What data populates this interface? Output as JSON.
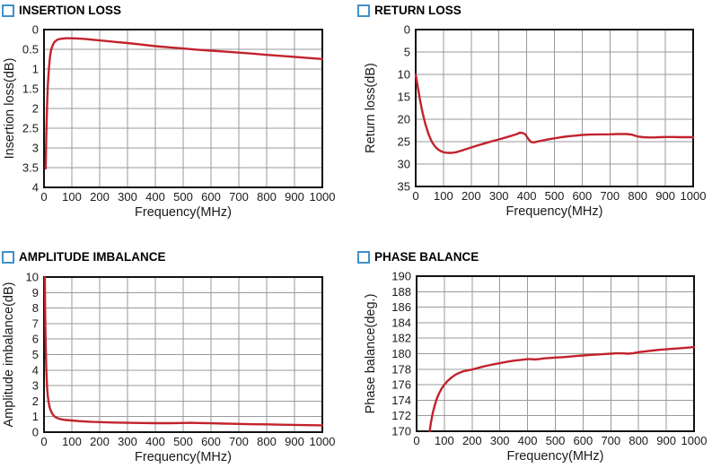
{
  "page": {
    "background": "#ffffff",
    "title_square_color": "#4191c9",
    "curve_color": "#c2222c",
    "grid_color": "#9a9a9a",
    "axis_color": "#111111",
    "text_color": "#1a1a1a"
  },
  "chart_data": [
    {
      "id": "insertion-loss",
      "type": "line",
      "title": "INSERTION LOSS",
      "xlabel": "Frequency(MHz)",
      "ylabel": "Insertion loss(dB)",
      "xlim": [
        0,
        1000
      ],
      "ylim": [
        0,
        4
      ],
      "y_inverted": true,
      "grid": true,
      "xticks": [
        0,
        100,
        200,
        300,
        400,
        500,
        600,
        700,
        800,
        900,
        1000
      ],
      "yticks": [
        0,
        0.5,
        1,
        1.5,
        2,
        2.5,
        3,
        3.5,
        4
      ],
      "series": [
        {
          "name": "insertion loss",
          "points": [
            [
              6,
              3.52
            ],
            [
              7,
              3.1
            ],
            [
              8,
              2.75
            ],
            [
              9,
              2.45
            ],
            [
              10,
              2.2
            ],
            [
              12,
              1.75
            ],
            [
              14,
              1.4
            ],
            [
              16,
              1.15
            ],
            [
              18,
              0.95
            ],
            [
              20,
              0.8
            ],
            [
              23,
              0.62
            ],
            [
              26,
              0.5
            ],
            [
              30,
              0.42
            ],
            [
              35,
              0.34
            ],
            [
              40,
              0.3
            ],
            [
              45,
              0.27
            ],
            [
              50,
              0.25
            ],
            [
              60,
              0.235
            ],
            [
              70,
              0.225
            ],
            [
              80,
              0.22
            ],
            [
              100,
              0.22
            ],
            [
              120,
              0.225
            ],
            [
              150,
              0.24
            ],
            [
              200,
              0.275
            ],
            [
              250,
              0.31
            ],
            [
              300,
              0.34
            ],
            [
              350,
              0.38
            ],
            [
              400,
              0.42
            ],
            [
              450,
              0.45
            ],
            [
              500,
              0.48
            ],
            [
              550,
              0.51
            ],
            [
              600,
              0.535
            ],
            [
              650,
              0.56
            ],
            [
              700,
              0.585
            ],
            [
              750,
              0.61
            ],
            [
              800,
              0.64
            ],
            [
              850,
              0.665
            ],
            [
              900,
              0.69
            ],
            [
              950,
              0.72
            ],
            [
              1000,
              0.745
            ]
          ]
        }
      ]
    },
    {
      "id": "return-loss",
      "type": "line",
      "title": "RETURN LOSS",
      "xlabel": "Frequency(MHz)",
      "ylabel": "Return loss(dB)",
      "xlim": [
        0,
        1000
      ],
      "ylim": [
        0,
        35
      ],
      "y_inverted": true,
      "grid": true,
      "xticks": [
        0,
        100,
        200,
        300,
        400,
        500,
        600,
        700,
        800,
        900,
        1000
      ],
      "yticks": [
        0,
        5,
        10,
        15,
        20,
        25,
        30,
        35
      ],
      "series": [
        {
          "name": "return loss",
          "points": [
            [
              0,
              10
            ],
            [
              5,
              11.8
            ],
            [
              10,
              13.7
            ],
            [
              15,
              15.5
            ],
            [
              20,
              17.1
            ],
            [
              25,
              18.6
            ],
            [
              30,
              19.9
            ],
            [
              35,
              21.1
            ],
            [
              40,
              22.1
            ],
            [
              45,
              23.1
            ],
            [
              50,
              23.9
            ],
            [
              55,
              24.6
            ],
            [
              60,
              25.2
            ],
            [
              70,
              26.1
            ],
            [
              80,
              26.7
            ],
            [
              90,
              27.1
            ],
            [
              100,
              27.35
            ],
            [
              115,
              27.5
            ],
            [
              130,
              27.5
            ],
            [
              145,
              27.35
            ],
            [
              160,
              27.1
            ],
            [
              180,
              26.7
            ],
            [
              200,
              26.3
            ],
            [
              225,
              25.8
            ],
            [
              250,
              25.35
            ],
            [
              275,
              24.9
            ],
            [
              300,
              24.5
            ],
            [
              325,
              24.05
            ],
            [
              350,
              23.6
            ],
            [
              365,
              23.3
            ],
            [
              375,
              23.0
            ],
            [
              385,
              23.05
            ],
            [
              395,
              23.35
            ],
            [
              405,
              24.3
            ],
            [
              415,
              25.05
            ],
            [
              425,
              25.15
            ],
            [
              440,
              24.95
            ],
            [
              460,
              24.7
            ],
            [
              480,
              24.45
            ],
            [
              500,
              24.25
            ],
            [
              525,
              24.0
            ],
            [
              550,
              23.8
            ],
            [
              575,
              23.65
            ],
            [
              600,
              23.5
            ],
            [
              630,
              23.42
            ],
            [
              660,
              23.38
            ],
            [
              700,
              23.35
            ],
            [
              730,
              23.3
            ],
            [
              760,
              23.3
            ],
            [
              780,
              23.45
            ],
            [
              800,
              23.85
            ],
            [
              820,
              24.0
            ],
            [
              840,
              24.05
            ],
            [
              860,
              24.05
            ],
            [
              880,
              24.0
            ],
            [
              900,
              23.95
            ],
            [
              925,
              23.95
            ],
            [
              950,
              24.0
            ],
            [
              975,
              24.0
            ],
            [
              1000,
              24.0
            ]
          ]
        }
      ]
    },
    {
      "id": "amplitude-imbalance",
      "type": "line",
      "title": "AMPLITUDE IMBALANCE",
      "xlabel": "Frequency(MHz)",
      "ylabel": "Amplitude imbalance(dB)",
      "xlim": [
        0,
        1000
      ],
      "ylim": [
        0,
        10
      ],
      "y_inverted": false,
      "grid": true,
      "xticks": [
        0,
        100,
        200,
        300,
        400,
        500,
        600,
        700,
        800,
        900,
        1000
      ],
      "yticks": [
        0,
        1,
        2,
        3,
        4,
        5,
        6,
        7,
        8,
        9,
        10
      ],
      "series": [
        {
          "name": "amplitude imbalance",
          "points": [
            [
              3,
              10
            ],
            [
              4,
              8.2
            ],
            [
              5,
              6.8
            ],
            [
              6,
              5.7
            ],
            [
              7,
              4.9
            ],
            [
              8,
              4.2
            ],
            [
              9,
              3.7
            ],
            [
              10,
              3.3
            ],
            [
              12,
              2.7
            ],
            [
              14,
              2.3
            ],
            [
              16,
              2.0
            ],
            [
              18,
              1.8
            ],
            [
              20,
              1.62
            ],
            [
              23,
              1.45
            ],
            [
              26,
              1.32
            ],
            [
              30,
              1.18
            ],
            [
              35,
              1.06
            ],
            [
              40,
              0.98
            ],
            [
              45,
              0.93
            ],
            [
              50,
              0.89
            ],
            [
              60,
              0.84
            ],
            [
              70,
              0.8
            ],
            [
              80,
              0.78
            ],
            [
              100,
              0.75
            ],
            [
              125,
              0.71
            ],
            [
              150,
              0.68
            ],
            [
              175,
              0.66
            ],
            [
              200,
              0.65
            ],
            [
              250,
              0.62
            ],
            [
              300,
              0.6
            ],
            [
              350,
              0.59
            ],
            [
              400,
              0.58
            ],
            [
              450,
              0.58
            ],
            [
              500,
              0.59
            ],
            [
              525,
              0.6
            ],
            [
              550,
              0.59
            ],
            [
              600,
              0.57
            ],
            [
              650,
              0.55
            ],
            [
              700,
              0.53
            ],
            [
              750,
              0.51
            ],
            [
              800,
              0.5
            ],
            [
              850,
              0.48
            ],
            [
              900,
              0.47
            ],
            [
              950,
              0.45
            ],
            [
              1000,
              0.44
            ]
          ]
        }
      ]
    },
    {
      "id": "phase-balance",
      "type": "line",
      "title": "PHASE BALANCE",
      "xlabel": "Frequency(MHz)",
      "ylabel": "Phase balance(deg.)",
      "xlim": [
        0,
        1000
      ],
      "ylim": [
        170,
        190
      ],
      "y_inverted": false,
      "grid": true,
      "xticks": [
        0,
        100,
        200,
        300,
        400,
        500,
        600,
        700,
        800,
        900,
        1000
      ],
      "yticks": [
        170,
        172,
        174,
        176,
        178,
        180,
        182,
        184,
        186,
        188,
        190
      ],
      "series": [
        {
          "name": "phase balance",
          "points": [
            [
              47,
              170
            ],
            [
              52,
              171.2
            ],
            [
              58,
              172.3
            ],
            [
              65,
              173.3
            ],
            [
              72,
              174.1
            ],
            [
              80,
              174.8
            ],
            [
              90,
              175.5
            ],
            [
              100,
              176.0
            ],
            [
              112,
              176.5
            ],
            [
              125,
              176.9
            ],
            [
              140,
              177.3
            ],
            [
              155,
              177.55
            ],
            [
              170,
              177.75
            ],
            [
              185,
              177.85
            ],
            [
              200,
              177.95
            ],
            [
              220,
              178.15
            ],
            [
              240,
              178.35
            ],
            [
              260,
              178.5
            ],
            [
              280,
              178.65
            ],
            [
              300,
              178.78
            ],
            [
              325,
              178.95
            ],
            [
              350,
              179.1
            ],
            [
              375,
              179.2
            ],
            [
              400,
              179.3
            ],
            [
              412,
              179.3
            ],
            [
              425,
              179.25
            ],
            [
              440,
              179.3
            ],
            [
              460,
              179.4
            ],
            [
              480,
              179.45
            ],
            [
              500,
              179.5
            ],
            [
              525,
              179.55
            ],
            [
              550,
              179.62
            ],
            [
              575,
              179.7
            ],
            [
              600,
              179.77
            ],
            [
              625,
              179.84
            ],
            [
              650,
              179.9
            ],
            [
              675,
              179.95
            ],
            [
              700,
              180.0
            ],
            [
              720,
              180.05
            ],
            [
              740,
              180.05
            ],
            [
              760,
              180.0
            ],
            [
              780,
              180.05
            ],
            [
              800,
              180.2
            ],
            [
              825,
              180.3
            ],
            [
              850,
              180.4
            ],
            [
              875,
              180.5
            ],
            [
              900,
              180.57
            ],
            [
              925,
              180.65
            ],
            [
              950,
              180.7
            ],
            [
              975,
              180.77
            ],
            [
              1000,
              180.85
            ]
          ]
        }
      ]
    }
  ]
}
